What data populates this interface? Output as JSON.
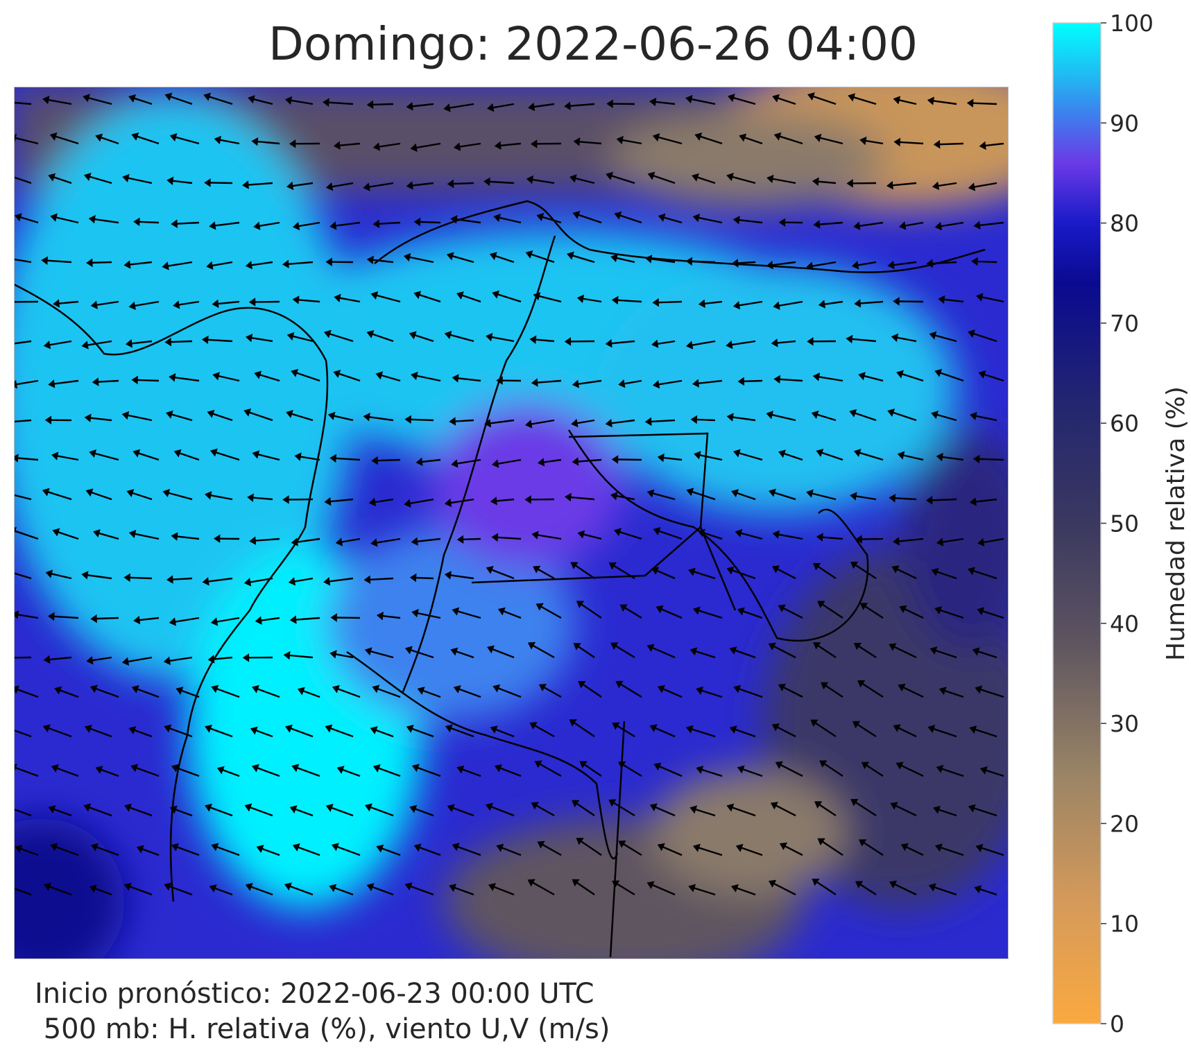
{
  "title": "Domingo: 2022-06-26 04:00",
  "colorbar": {
    "label": "Humedad relativa (%)",
    "lim": [
      0,
      100
    ],
    "ticks": [
      0,
      10,
      20,
      30,
      40,
      50,
      60,
      70,
      80,
      90,
      100
    ]
  },
  "footer": {
    "line1": "Inicio pronóstico: 2022-06-23 00:00 UTC",
    "line2": " 500 mb: H. relativa (%), viento U,V (m/s)"
  }
}
